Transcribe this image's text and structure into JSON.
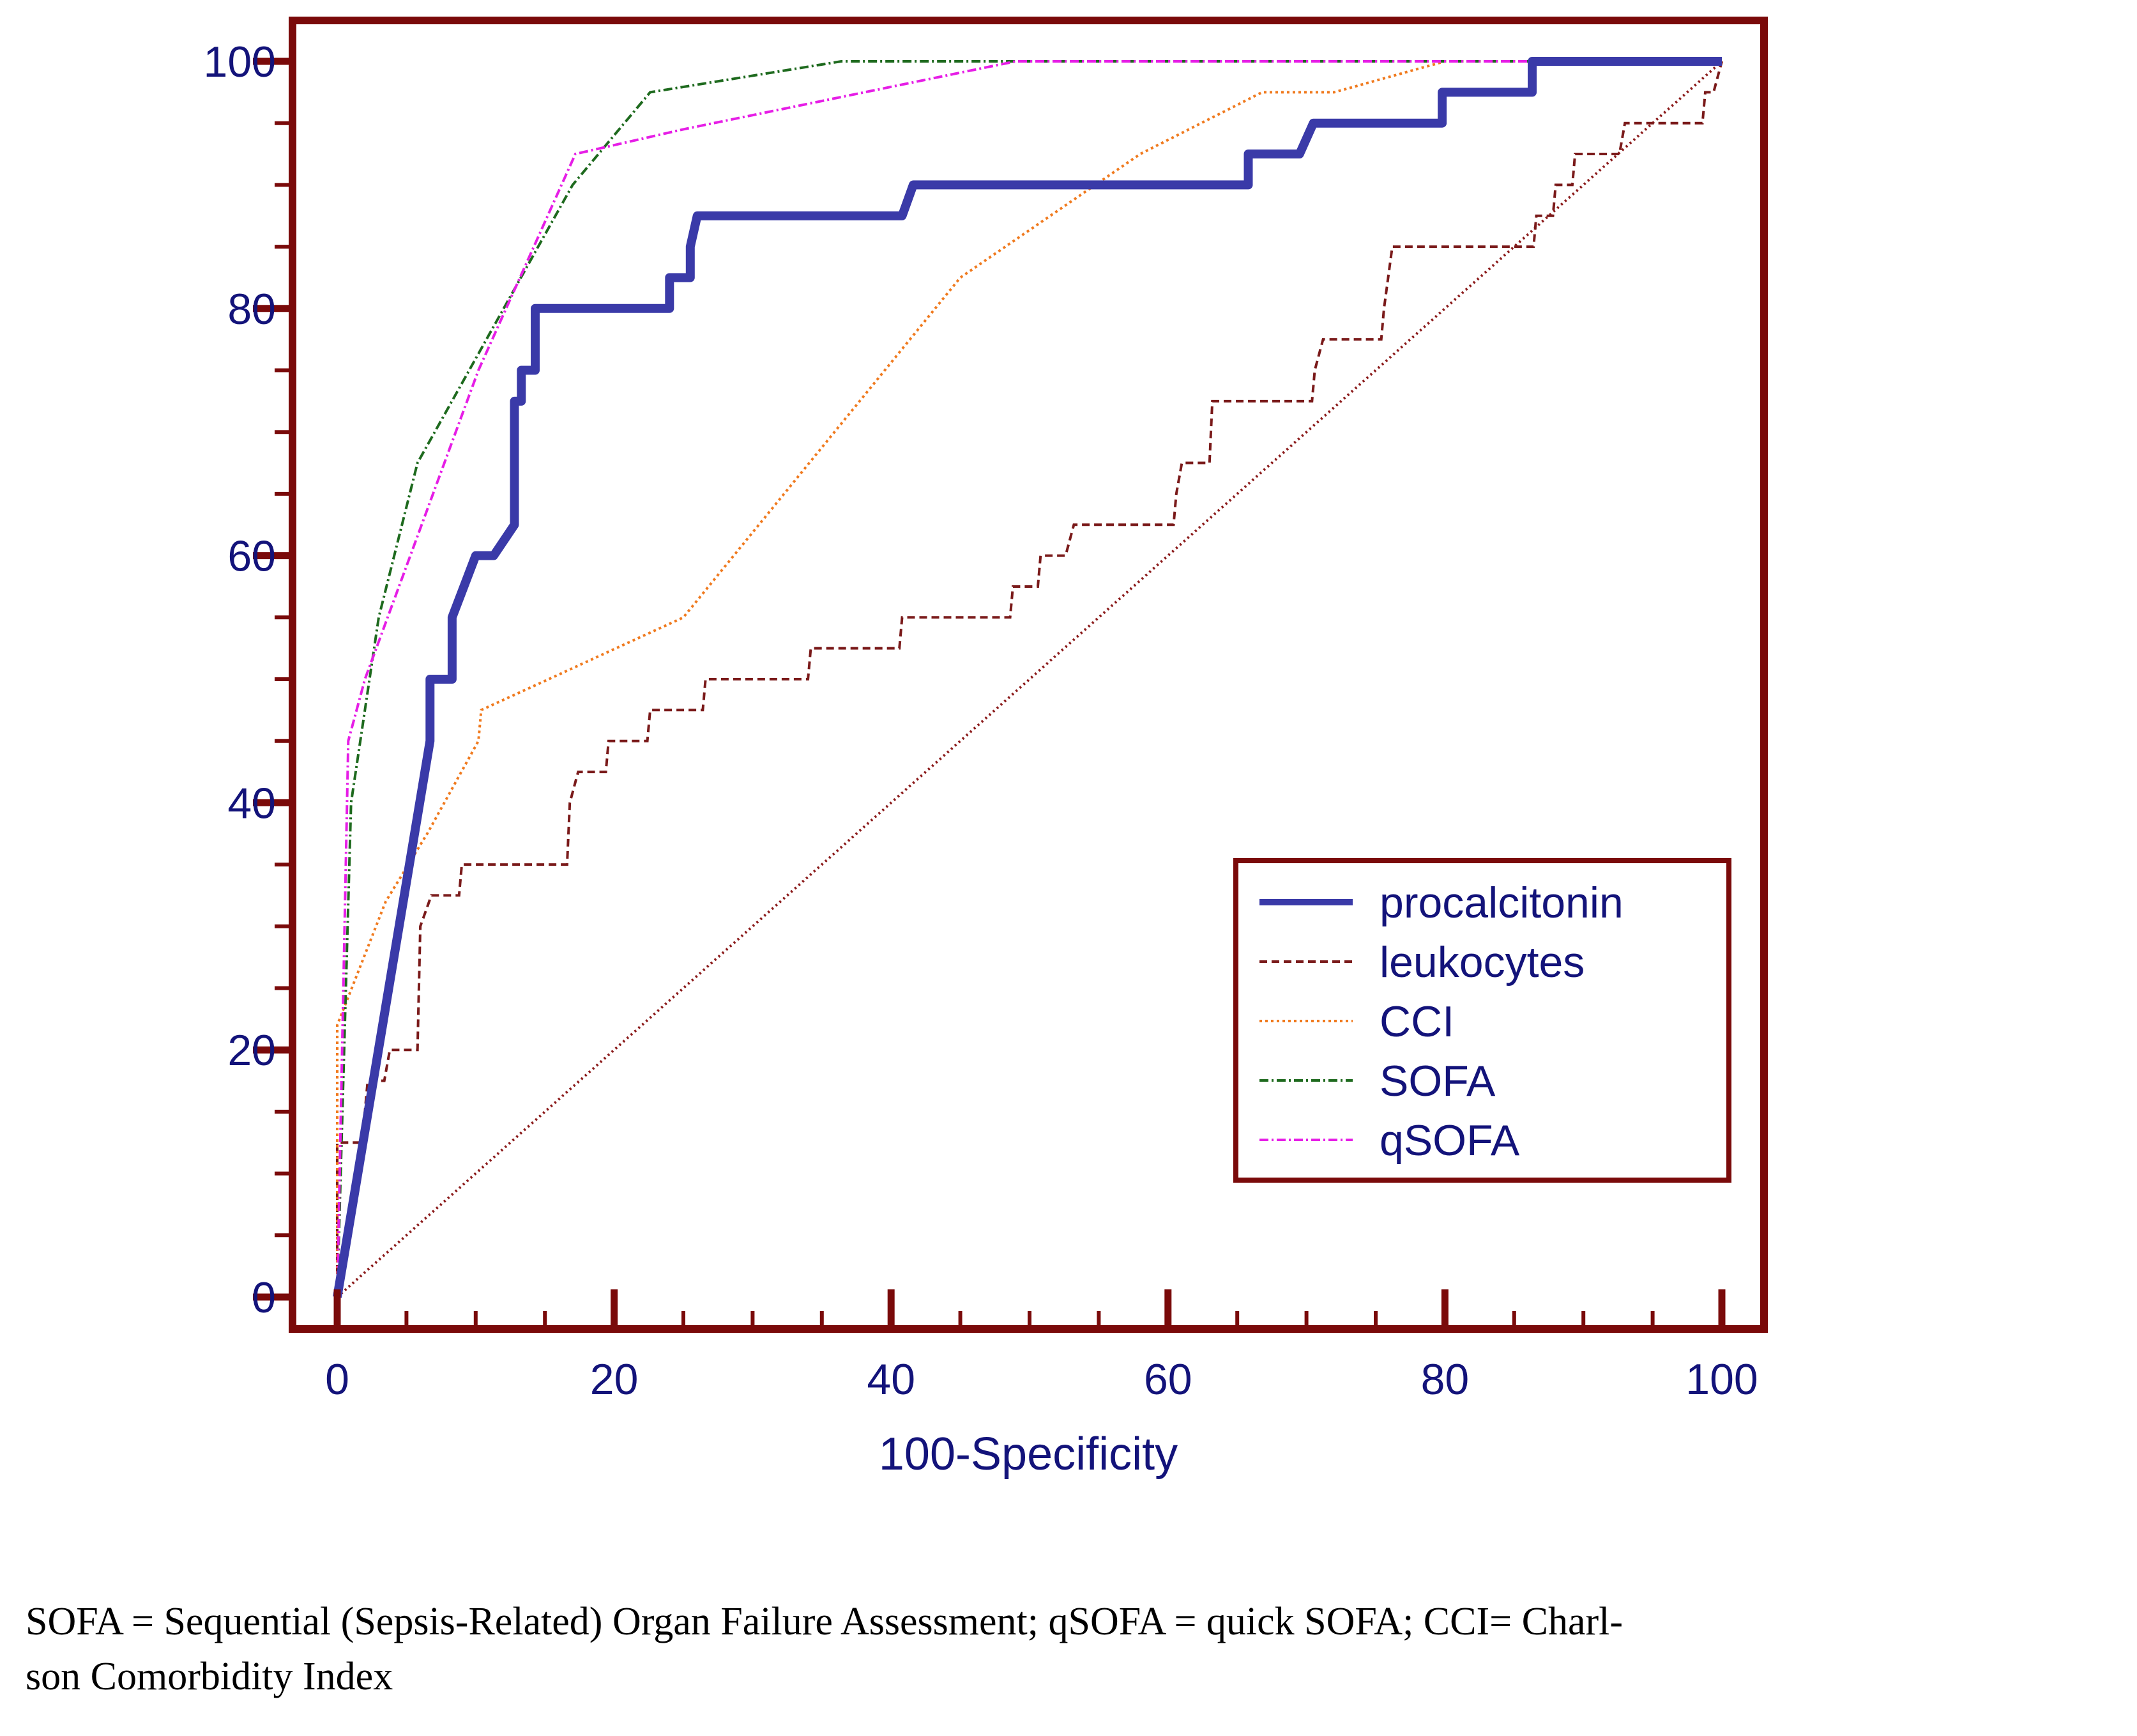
{
  "chart_data": {
    "type": "line",
    "title": "",
    "xlabel": "100-Specificity",
    "ylabel": "",
    "xlim": [
      0,
      100
    ],
    "ylim": [
      0,
      100
    ],
    "x_ticks": [
      0,
      20,
      40,
      60,
      80,
      100
    ],
    "y_ticks": [
      0,
      20,
      40,
      60,
      80,
      100
    ],
    "grid": false,
    "legend_position": "lower-right",
    "colors": {
      "frame": "#7a0a0a",
      "axis_text": "#13137a",
      "legend_text": "#13137a"
    },
    "series": [
      {
        "name": "procalcitonin",
        "color": "#3a3aa8",
        "style": "solid",
        "points": [
          [
            0,
            0
          ],
          [
            6.7,
            45
          ],
          [
            6.7,
            50
          ],
          [
            8.3,
            50
          ],
          [
            8.3,
            55
          ],
          [
            10,
            60
          ],
          [
            11.3,
            60
          ],
          [
            12.8,
            62.5
          ],
          [
            12.8,
            72.5
          ],
          [
            13.3,
            72.5
          ],
          [
            13.3,
            75
          ],
          [
            14.3,
            75
          ],
          [
            14.3,
            80
          ],
          [
            24,
            80
          ],
          [
            24,
            82.5
          ],
          [
            25.5,
            82.5
          ],
          [
            25.5,
            85
          ],
          [
            26,
            87.5
          ],
          [
            40.8,
            87.5
          ],
          [
            41.6,
            90
          ],
          [
            65.8,
            90
          ],
          [
            65.8,
            92.5
          ],
          [
            69.5,
            92.5
          ],
          [
            70.5,
            95
          ],
          [
            79.8,
            95
          ],
          [
            79.8,
            97.5
          ],
          [
            86.3,
            97.5
          ],
          [
            86.3,
            100
          ],
          [
            100,
            100
          ]
        ]
      },
      {
        "name": "leukocytes",
        "color": "#7a1a1a",
        "style": "dashed",
        "points": [
          [
            0,
            0
          ],
          [
            0,
            12.5
          ],
          [
            1.8,
            12.5
          ],
          [
            2.2,
            17.5
          ],
          [
            3.4,
            17.5
          ],
          [
            3.8,
            20
          ],
          [
            5.8,
            20
          ],
          [
            6,
            30
          ],
          [
            6.8,
            32.5
          ],
          [
            8.8,
            32.5
          ],
          [
            9,
            35
          ],
          [
            16.6,
            35
          ],
          [
            16.8,
            40
          ],
          [
            17.4,
            42.5
          ],
          [
            19.4,
            42.5
          ],
          [
            19.6,
            45
          ],
          [
            22.4,
            45
          ],
          [
            22.6,
            47.5
          ],
          [
            26.4,
            47.5
          ],
          [
            26.6,
            50
          ],
          [
            34,
            50
          ],
          [
            34.2,
            52.5
          ],
          [
            40.6,
            52.5
          ],
          [
            40.8,
            55
          ],
          [
            48.6,
            55
          ],
          [
            48.8,
            57.5
          ],
          [
            50.6,
            57.5
          ],
          [
            50.8,
            60
          ],
          [
            52.6,
            60
          ],
          [
            53.2,
            62.5
          ],
          [
            60.4,
            62.5
          ],
          [
            60.6,
            65
          ],
          [
            61,
            67.5
          ],
          [
            63,
            67.5
          ],
          [
            63.2,
            72.5
          ],
          [
            70.4,
            72.5
          ],
          [
            70.6,
            75
          ],
          [
            71.2,
            77.5
          ],
          [
            75.4,
            77.5
          ],
          [
            75.6,
            80
          ],
          [
            76.2,
            85
          ],
          [
            86.4,
            85
          ],
          [
            86.6,
            87.5
          ],
          [
            87.8,
            87.5
          ],
          [
            88,
            90
          ],
          [
            89.2,
            90
          ],
          [
            89.4,
            92.5
          ],
          [
            92.6,
            92.5
          ],
          [
            93,
            95
          ],
          [
            98.6,
            95
          ],
          [
            98.8,
            97.5
          ],
          [
            99.4,
            97.5
          ],
          [
            100,
            100
          ]
        ]
      },
      {
        "name": "CCI",
        "color": "#f07a1e",
        "style": "dotted",
        "points": [
          [
            0,
            0
          ],
          [
            0,
            22
          ],
          [
            3.5,
            32
          ],
          [
            6.5,
            37.5
          ],
          [
            10.2,
            45
          ],
          [
            10.4,
            47.5
          ],
          [
            25,
            55
          ],
          [
            45,
            82.5
          ],
          [
            58,
            92.5
          ],
          [
            66.8,
            97.5
          ],
          [
            72,
            97.5
          ],
          [
            80,
            100
          ],
          [
            100,
            100
          ]
        ]
      },
      {
        "name": "SOFA",
        "color": "#1e6a1e",
        "style": "dashdot",
        "points": [
          [
            0,
            0
          ],
          [
            1,
            40
          ],
          [
            3,
            55
          ],
          [
            5.8,
            67.5
          ],
          [
            17,
            90
          ],
          [
            22.6,
            97.5
          ],
          [
            36.4,
            100
          ],
          [
            100,
            100
          ]
        ]
      },
      {
        "name": "qSOFA",
        "color": "#e61ee6",
        "style": "dashdot",
        "points": [
          [
            0,
            0
          ],
          [
            0.8,
            45
          ],
          [
            2,
            50
          ],
          [
            10.2,
            75
          ],
          [
            17.2,
            92.5
          ],
          [
            25,
            94.5
          ],
          [
            49,
            100
          ],
          [
            100,
            100
          ]
        ]
      },
      {
        "name": "",
        "color": "#8b1a1a",
        "style": "diagonal",
        "points": [
          [
            0,
            0
          ],
          [
            100,
            100
          ]
        ]
      }
    ]
  },
  "caption": {
    "line1": "SOFA = Sequential (Sepsis-Related) Organ Failure Assessment; qSOFA = quick SOFA; CCI= Charl-",
    "line2": "son Comorbidity Index"
  }
}
